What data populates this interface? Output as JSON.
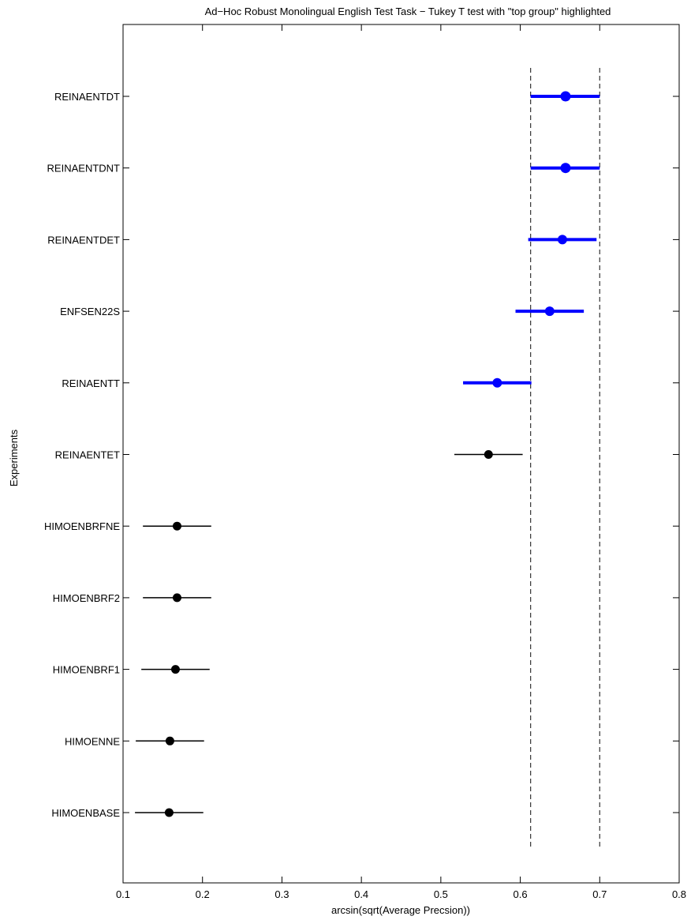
{
  "chart_data": {
    "type": "scatter",
    "title": "Ad−Hoc Robust Monolingual English Test Task − Tukey T test with \"top group\" highlighted",
    "xlabel": "arcsin(sqrt(Average Precsion))",
    "ylabel": "Experiments",
    "xlim": [
      0.1,
      0.8
    ],
    "xticks": [
      "0.1",
      "0.2",
      "0.3",
      "0.4",
      "0.5",
      "0.6",
      "0.7",
      "0.8"
    ],
    "grid": false,
    "reference_lines": [
      0.613,
      0.7
    ],
    "highlight_color": "#0000ff",
    "default_color": "#000000",
    "series": [
      {
        "label": "REINAENTDT",
        "mean": 0.657,
        "low": 0.613,
        "high": 0.7,
        "top_group": true
      },
      {
        "label": "REINAENTDNT",
        "mean": 0.657,
        "low": 0.613,
        "high": 0.7,
        "top_group": true
      },
      {
        "label": "REINAENTDET",
        "mean": 0.653,
        "low": 0.61,
        "high": 0.696,
        "top_group": true
      },
      {
        "label": "ENFSEN22S",
        "mean": 0.637,
        "low": 0.594,
        "high": 0.68,
        "top_group": true
      },
      {
        "label": "REINAENTT",
        "mean": 0.571,
        "low": 0.528,
        "high": 0.614,
        "top_group": true
      },
      {
        "label": "REINAENTET",
        "mean": 0.56,
        "low": 0.517,
        "high": 0.603,
        "top_group": false
      },
      {
        "label": "HIMOENBRFNE",
        "mean": 0.168,
        "low": 0.125,
        "high": 0.211,
        "top_group": false
      },
      {
        "label": "HIMOENBRF2",
        "mean": 0.168,
        "low": 0.125,
        "high": 0.211,
        "top_group": false
      },
      {
        "label": "HIMOENBRF1",
        "mean": 0.166,
        "low": 0.123,
        "high": 0.209,
        "top_group": false
      },
      {
        "label": "HIMOENNE",
        "mean": 0.159,
        "low": 0.116,
        "high": 0.202,
        "top_group": false
      },
      {
        "label": "HIMOENBASE",
        "mean": 0.158,
        "low": 0.115,
        "high": 0.201,
        "top_group": false
      }
    ]
  }
}
